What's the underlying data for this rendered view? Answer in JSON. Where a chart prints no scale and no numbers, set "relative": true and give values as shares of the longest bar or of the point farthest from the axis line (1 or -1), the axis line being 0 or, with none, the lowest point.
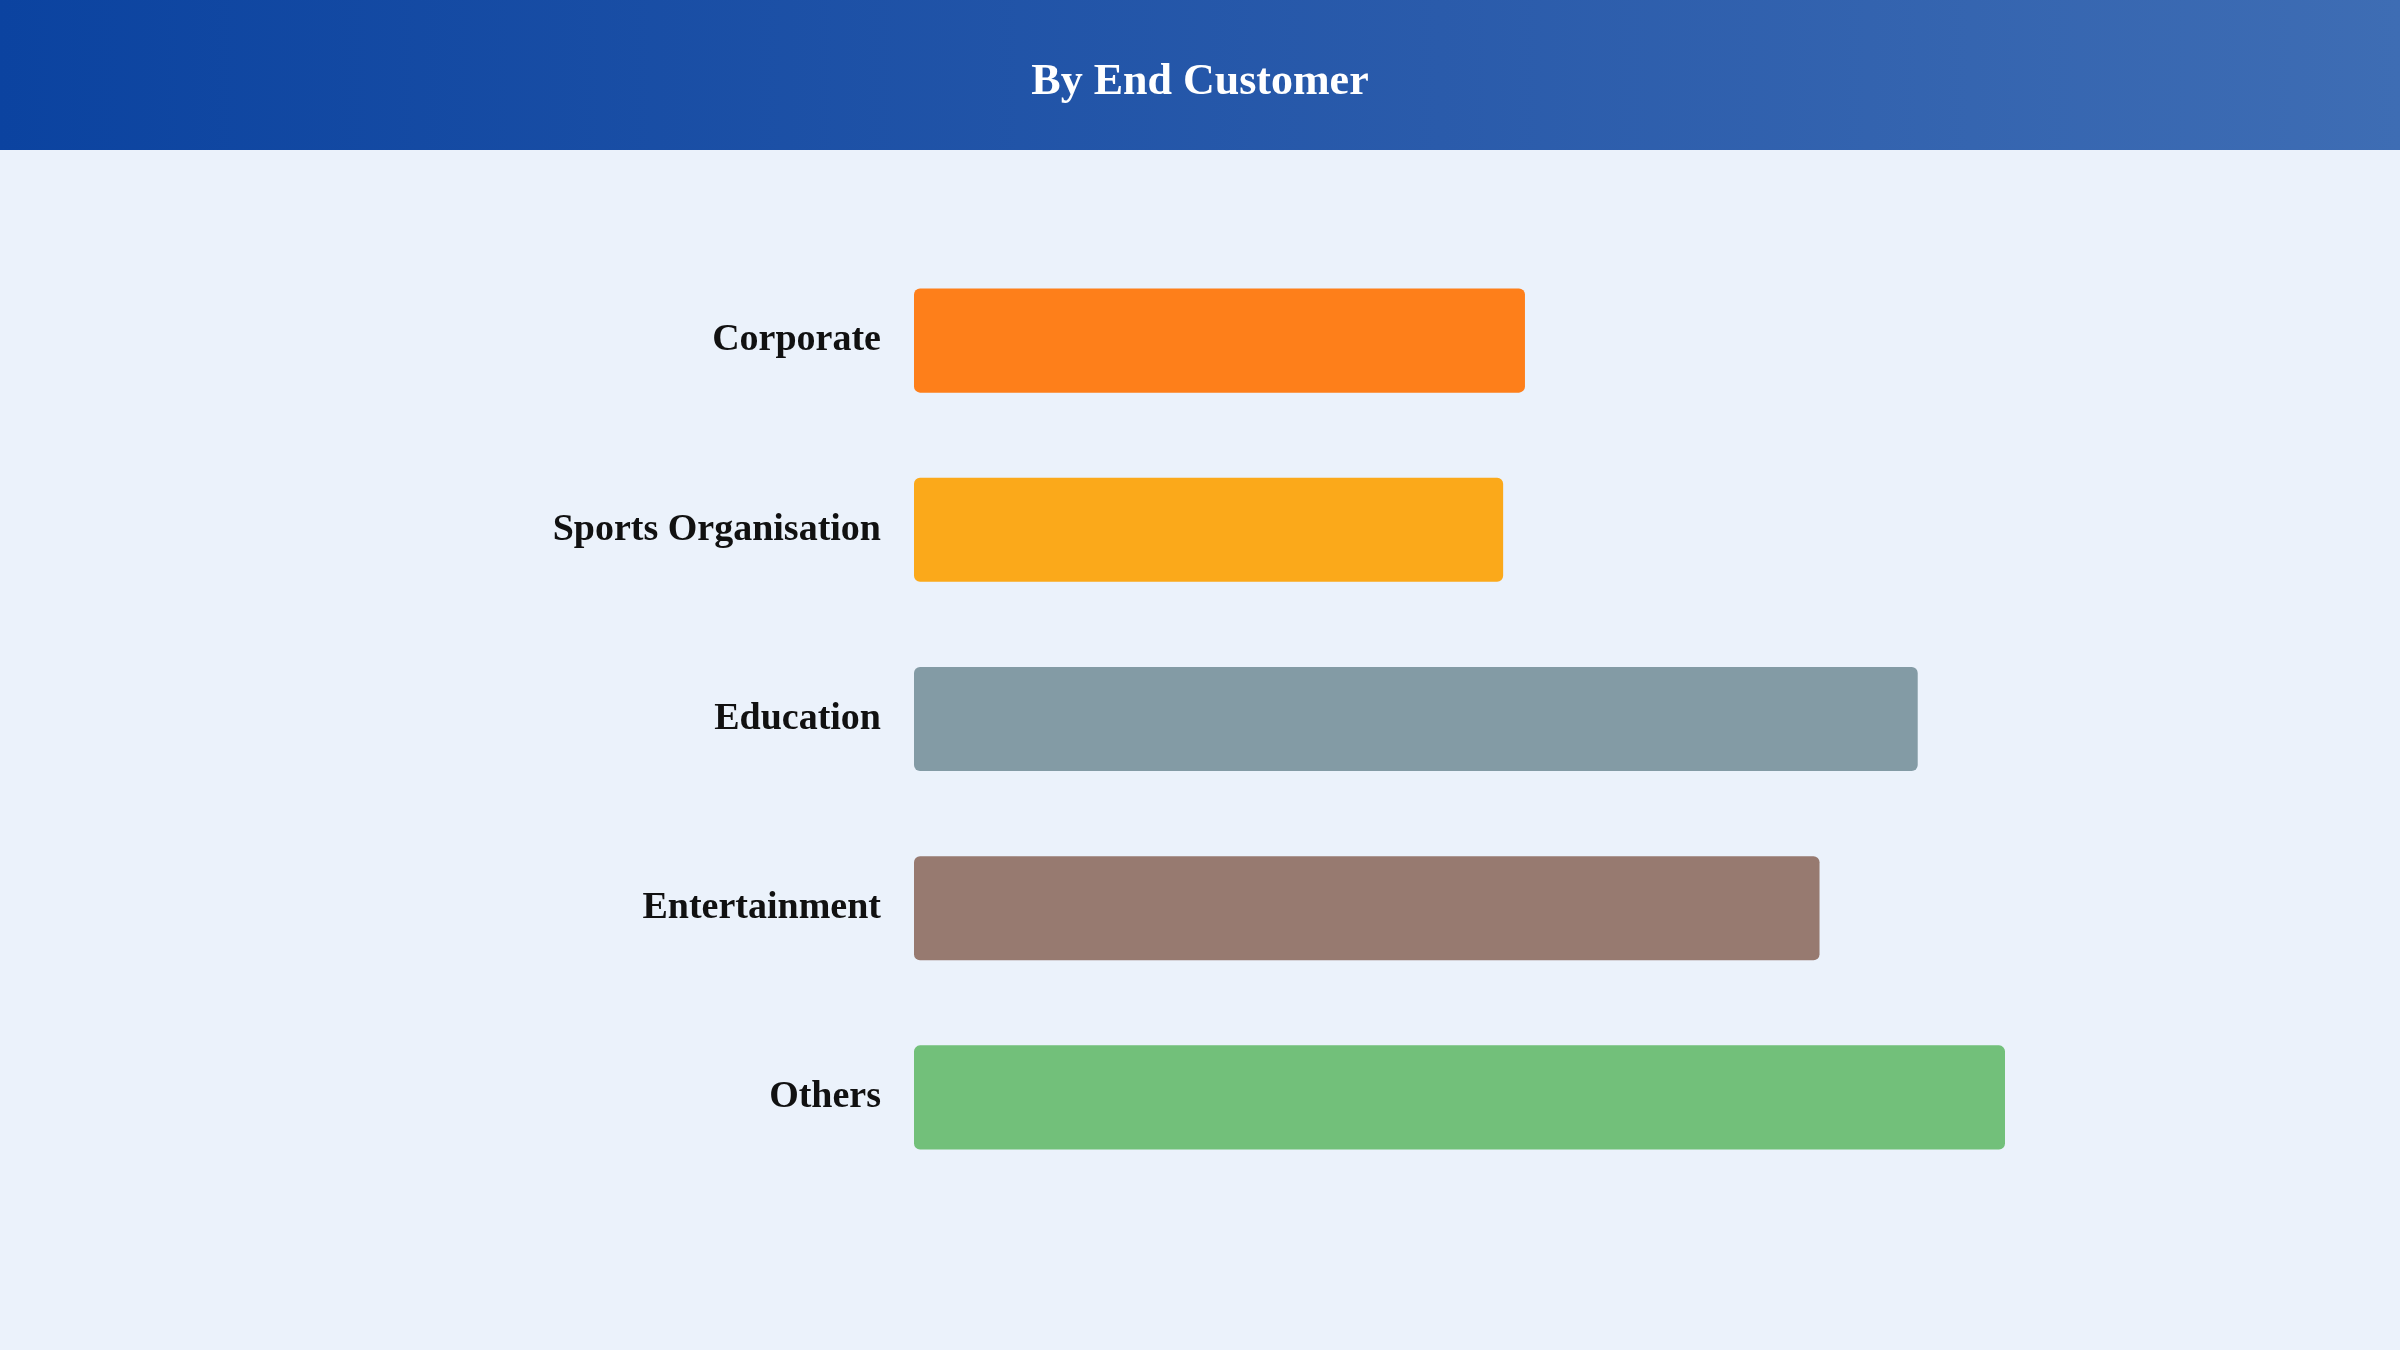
{
  "chart_data": {
    "type": "bar",
    "title": "By End Customer",
    "orientation": "horizontal",
    "relative": true,
    "categories": [
      "Corporate",
      "Sports Organisation",
      "Education",
      "Entertainment",
      "Others"
    ],
    "values": [
      0.56,
      0.54,
      0.92,
      0.83,
      1
    ],
    "colors": [
      "#fe7f1a",
      "#fba91a",
      "#839ba5",
      "#977a70",
      "#72c07a"
    ],
    "grid": false,
    "legend": false
  }
}
